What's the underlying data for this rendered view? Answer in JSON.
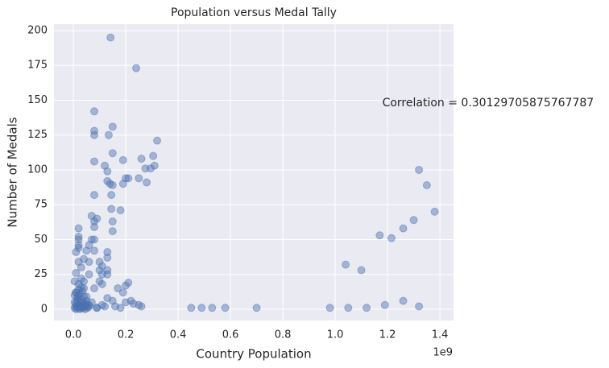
{
  "chart_data": {
    "type": "scatter",
    "title": "Population versus Medal Tally",
    "x_label": "Country Population",
    "y_label": "Number of Medals",
    "x_offset_label": "1e9",
    "annotation": {
      "text": "Correlation = 0.30129705875767787",
      "x": 1.18,
      "y": 148
    },
    "color": "#4c72b0",
    "opacity": 0.45,
    "grid": true,
    "xlim": [
      -0.074,
      1.452
    ],
    "ylim": [
      -8.1,
      204.6
    ],
    "xticks": [
      {
        "value": 0,
        "label": "0.0"
      },
      {
        "value": 0.2,
        "label": "0.2"
      },
      {
        "value": 0.4,
        "label": "0.4"
      },
      {
        "value": 0.6,
        "label": "0.6"
      },
      {
        "value": 0.8,
        "label": "0.8"
      },
      {
        "value": 1,
        "label": "1.0"
      },
      {
        "value": 1.2,
        "label": "1.2"
      },
      {
        "value": 1.4,
        "label": "1.4"
      }
    ],
    "yticks": [
      0,
      25,
      50,
      75,
      100,
      125,
      150,
      175,
      200
    ],
    "x": [
      0.142,
      0.24,
      0.08,
      0.08,
      0.08,
      0.15,
      0.135,
      0.32,
      0.15,
      0.26,
      0.305,
      0.08,
      0.19,
      0.12,
      0.31,
      0.275,
      0.295,
      0.13,
      0.2,
      0.21,
      0.25,
      0.28,
      0.13,
      0.14,
      0.15,
      0.19,
      0.08,
      0.145,
      0.145,
      0.18,
      0.07,
      0.09,
      0.08,
      0.15,
      0.08,
      0.15,
      0.02,
      0.02,
      0.02,
      0.08,
      0.07,
      0.02,
      0.02,
      0.06,
      0.05,
      0.08,
      0.13,
      0.01,
      0.13,
      0.04,
      0.02,
      0.06,
      0.1,
      0.11,
      0.03,
      0.1,
      0.13,
      0.01,
      0.06,
      0.11,
      0.13,
      0.03,
      0.1,
      0.04,
      0.02,
      0.11,
      0.08,
      0.17,
      0.2,
      0.21,
      0.19,
      0.01,
      0.02,
      0.05,
      0.13,
      0.15,
      0.2,
      0.22,
      0.23,
      0.25,
      0.26,
      0.16,
      0.12,
      0.18,
      0.09,
      0.005,
      0.01,
      0.015,
      0.02,
      0.025,
      0.03,
      0.035,
      0.04,
      0.045,
      0.05,
      0.055,
      0.06,
      0.005,
      0.01,
      0.015,
      0.02,
      0.025,
      0.03,
      0.035,
      0.04,
      0.045,
      0.05,
      0.005,
      0.01,
      0.015,
      0.02,
      0.025,
      0.03,
      0.035,
      0.04,
      0.005,
      0.01,
      0.02,
      0.03,
      0.04,
      0.05,
      0.06,
      0.07,
      0.09,
      0.11,
      0.45,
      0.49,
      0.53,
      0.58,
      0.7,
      0.98,
      1.05,
      1.12,
      1.19,
      1.26,
      1.32,
      1.04,
      1.1,
      1.17,
      1.215,
      1.26,
      1.3,
      1.32,
      1.35,
      1.38
    ],
    "values": [
      195,
      173,
      142,
      128,
      125,
      131,
      125,
      121,
      112,
      108,
      110,
      106,
      107,
      103,
      103,
      101,
      101,
      99,
      94,
      94,
      94,
      91,
      92,
      90,
      89,
      90,
      82,
      82,
      72,
      71,
      67,
      65,
      63,
      63,
      59,
      56,
      58,
      52,
      50,
      50,
      50,
      46,
      44,
      46,
      42,
      42,
      41,
      41,
      37,
      36,
      34,
      34,
      34,
      31,
      30,
      28,
      28,
      26,
      25,
      25,
      25,
      22,
      20,
      20,
      18,
      18,
      15,
      15,
      17,
      19,
      12,
      12,
      10,
      9,
      8,
      6,
      5,
      6,
      4,
      3,
      2,
      2,
      2,
      1,
      1,
      1,
      2,
      1,
      3,
      0,
      1,
      2,
      1,
      0,
      2,
      1,
      3,
      5,
      4,
      6,
      8,
      3,
      7,
      5,
      9,
      4,
      6,
      10,
      12,
      8,
      14,
      11,
      16,
      13,
      15,
      20,
      0,
      2,
      1,
      4,
      3,
      2,
      5,
      1,
      3,
      1,
      1,
      1,
      1,
      1,
      1,
      1,
      1,
      3,
      6,
      2,
      32,
      28,
      53,
      51,
      58,
      64,
      100,
      89,
      70
    ]
  }
}
